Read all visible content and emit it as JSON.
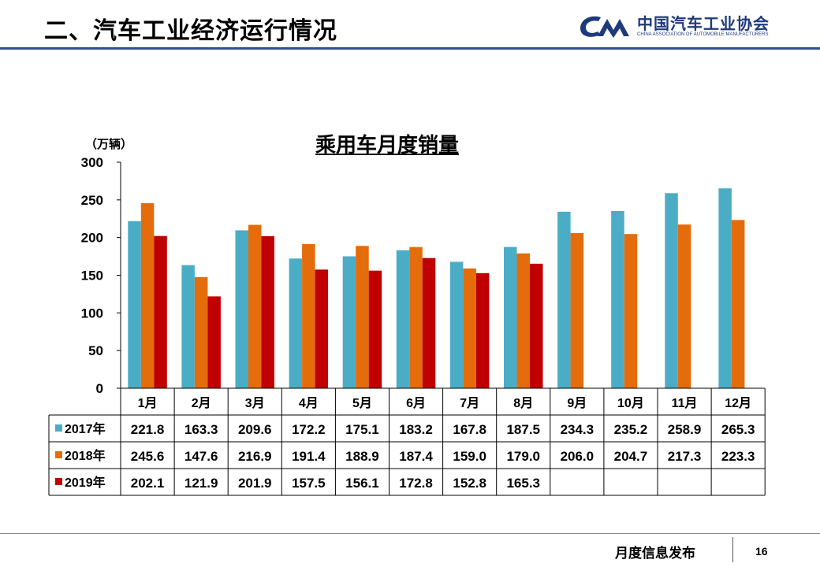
{
  "header": {
    "title": "二、汽车工业经济运行情况",
    "logo_cn": "中国汽车工业协会",
    "logo_en": "CHINA ASSOCIATION OF AUTOMOBILE MANUFACTURERS"
  },
  "footer": {
    "text": "月度信息发布",
    "page": "16"
  },
  "colors": {
    "series_2017": "#4bacc6",
    "series_2018": "#e46c0a",
    "series_2019": "#c00000",
    "title_rule": "#2f4f8f",
    "logo": "#1f3a7a"
  },
  "chart_data": {
    "type": "bar",
    "title": "乘用车月度销量",
    "ylabel": "（万辆）",
    "xlabel": "",
    "ylim": [
      0,
      300
    ],
    "yticks": [
      0,
      50,
      100,
      150,
      200,
      250,
      300
    ],
    "categories": [
      "1月",
      "2月",
      "3月",
      "4月",
      "5月",
      "6月",
      "7月",
      "8月",
      "9月",
      "10月",
      "11月",
      "12月"
    ],
    "series": [
      {
        "name": "2017年",
        "values": [
          221.8,
          163.3,
          209.6,
          172.2,
          175.1,
          183.2,
          167.8,
          187.5,
          234.3,
          235.2,
          258.9,
          265.3
        ]
      },
      {
        "name": "2018年",
        "values": [
          245.6,
          147.6,
          216.9,
          191.4,
          188.9,
          187.4,
          159.0,
          179.0,
          206.0,
          204.7,
          217.3,
          223.3
        ]
      },
      {
        "name": "2019年",
        "values": [
          202.1,
          121.9,
          201.9,
          157.5,
          156.1,
          172.8,
          152.8,
          165.3,
          null,
          null,
          null,
          null
        ]
      }
    ],
    "grid": false,
    "legend": "data-table"
  }
}
